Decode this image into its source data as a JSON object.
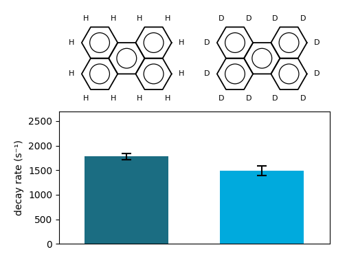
{
  "chart_data": {
    "type": "bar",
    "categories": [
      "H",
      "D"
    ],
    "values": [
      1780,
      1490
    ],
    "errors": [
      65,
      100
    ],
    "colors": [
      "#1b6d82",
      "#00aadd"
    ],
    "ylabel": "decay rate (s⁻¹)",
    "ylim": [
      0,
      2700
    ],
    "yticks": [
      0,
      500,
      1000,
      1500,
      2000,
      2500
    ],
    "tick_labels": "y"
  }
}
